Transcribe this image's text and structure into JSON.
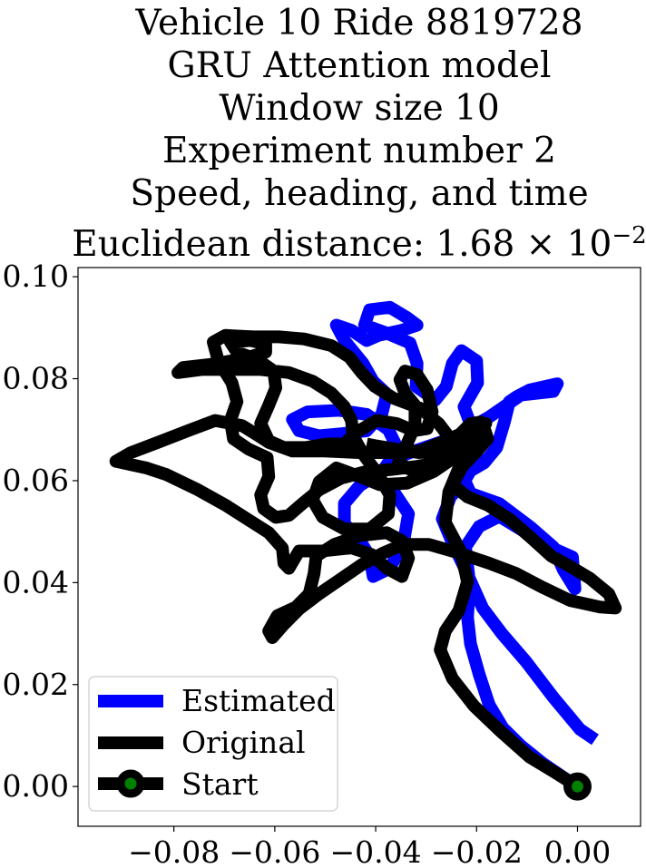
{
  "chart_data": {
    "type": "line",
    "title_lines": [
      "Vehicle 10 Ride 8819728",
      "GRU Attention model",
      "Window size 10",
      "Experiment number 2",
      "Speed, heading, and time"
    ],
    "distance_label": "Euclidean distance: 1.68",
    "distance_exponent_base": "× 10",
    "distance_exponent": "−2",
    "xlabel": "",
    "ylabel": "",
    "xlim": [
      -0.099,
      0.0125
    ],
    "ylim": [
      -0.0078,
      0.1018
    ],
    "xticks": [
      -0.08,
      -0.06,
      -0.04,
      -0.02,
      0.0
    ],
    "xtick_labels": [
      "−0.08",
      "−0.06",
      "−0.04",
      "−0.02",
      "0.00"
    ],
    "yticks": [
      0.0,
      0.02,
      0.04,
      0.06,
      0.08,
      0.1
    ],
    "ytick_labels": [
      "0.00",
      "0.02",
      "0.04",
      "0.06",
      "0.08",
      "0.10"
    ],
    "legend_position": "lower-left",
    "series": [
      {
        "name": "Estimated",
        "color": "#0000ff",
        "points": [
          [
            0.0035,
            0.0092
          ],
          [
            0.0005,
            0.0112
          ],
          [
            -0.0048,
            0.0175
          ],
          [
            -0.0102,
            0.0245
          ],
          [
            -0.015,
            0.03
          ],
          [
            -0.0188,
            0.035
          ],
          [
            -0.0215,
            0.041
          ],
          [
            -0.0222,
            0.047
          ],
          [
            -0.0195,
            0.051
          ],
          [
            -0.0155,
            0.053
          ],
          [
            -0.0105,
            0.05
          ],
          [
            -0.0055,
            0.047
          ],
          [
            -0.001,
            0.045
          ],
          [
            -0.0005,
            0.0388
          ],
          [
            -0.0028,
            0.0425
          ],
          [
            -0.0048,
            0.047
          ],
          [
            -0.0092,
            0.0508
          ],
          [
            -0.0155,
            0.0555
          ],
          [
            -0.0212,
            0.0575
          ],
          [
            -0.0228,
            0.061
          ],
          [
            -0.0185,
            0.0635
          ],
          [
            -0.016,
            0.0665
          ],
          [
            -0.0145,
            0.0715
          ],
          [
            -0.0135,
            0.0755
          ],
          [
            -0.012,
            0.0765
          ],
          [
            -0.0095,
            0.0778
          ],
          [
            -0.004,
            0.079
          ],
          [
            -0.0048,
            0.0775
          ],
          [
            -0.0112,
            0.0768
          ],
          [
            -0.0175,
            0.0725
          ],
          [
            -0.021,
            0.0705
          ],
          [
            -0.0225,
            0.0745
          ],
          [
            -0.0198,
            0.0792
          ],
          [
            -0.02,
            0.0835
          ],
          [
            -0.023,
            0.0855
          ],
          [
            -0.0248,
            0.083
          ],
          [
            -0.026,
            0.0785
          ],
          [
            -0.0282,
            0.0758
          ],
          [
            -0.032,
            0.0785
          ],
          [
            -0.0318,
            0.083
          ],
          [
            -0.0332,
            0.087
          ],
          [
            -0.038,
            0.089
          ],
          [
            -0.0422,
            0.0905
          ],
          [
            -0.0412,
            0.0935
          ],
          [
            -0.0372,
            0.094
          ],
          [
            -0.0338,
            0.092
          ],
          [
            -0.0318,
            0.0905
          ],
          [
            -0.0348,
            0.0895
          ],
          [
            -0.0395,
            0.0885
          ],
          [
            -0.0418,
            0.0875
          ],
          [
            -0.0448,
            0.0895
          ],
          [
            -0.0478,
            0.0905
          ],
          [
            -0.0462,
            0.0875
          ],
          [
            -0.0425,
            0.083
          ],
          [
            -0.0405,
            0.0795
          ],
          [
            -0.0378,
            0.077
          ],
          [
            -0.0388,
            0.073
          ],
          [
            -0.0418,
            0.0698
          ],
          [
            -0.0468,
            0.0692
          ],
          [
            -0.0512,
            0.0688
          ],
          [
            -0.0552,
            0.0698
          ],
          [
            -0.0565,
            0.072
          ],
          [
            -0.0535,
            0.0735
          ],
          [
            -0.0472,
            0.0738
          ],
          [
            -0.0418,
            0.073
          ],
          [
            -0.0375,
            0.07
          ],
          [
            -0.0355,
            0.066
          ],
          [
            -0.0385,
            0.062
          ],
          [
            -0.0432,
            0.059
          ],
          [
            -0.0462,
            0.0555
          ],
          [
            -0.0462,
            0.0515
          ],
          [
            -0.0435,
            0.0488
          ],
          [
            -0.0412,
            0.0452
          ],
          [
            -0.0405,
            0.0412
          ],
          [
            -0.0372,
            0.0428
          ],
          [
            -0.0345,
            0.0478
          ],
          [
            -0.0335,
            0.0535
          ],
          [
            -0.0362,
            0.0575
          ],
          [
            -0.0395,
            0.0605
          ],
          [
            -0.0372,
            0.064
          ],
          [
            -0.0318,
            0.066
          ],
          [
            -0.0252,
            0.0682
          ],
          [
            -0.0215,
            0.0678
          ],
          [
            -0.0198,
            0.0645
          ],
          [
            -0.0222,
            0.0602
          ],
          [
            -0.0252,
            0.0568
          ],
          [
            -0.0268,
            0.0525
          ],
          [
            -0.0248,
            0.0478
          ],
          [
            -0.0222,
            0.0425
          ],
          [
            -0.0215,
            0.038
          ],
          [
            -0.0218,
            0.0332
          ],
          [
            -0.0212,
            0.028
          ],
          [
            -0.0195,
            0.022
          ],
          [
            -0.0175,
            0.016
          ],
          [
            -0.0148,
            0.0115
          ],
          [
            -0.0112,
            0.008
          ],
          [
            -0.0068,
            0.0045
          ],
          [
            -0.0028,
            0.0018
          ],
          [
            0.0,
            0.0
          ]
        ]
      },
      {
        "name": "Original",
        "color": "#000000",
        "points": [
          [
            0.0,
            0.0
          ],
          [
            -0.0045,
            0.0028
          ],
          [
            -0.0095,
            0.0058
          ],
          [
            -0.0152,
            0.0108
          ],
          [
            -0.0205,
            0.0158
          ],
          [
            -0.0248,
            0.0212
          ],
          [
            -0.0272,
            0.0268
          ],
          [
            -0.0262,
            0.0305
          ],
          [
            -0.0235,
            0.0345
          ],
          [
            -0.0218,
            0.0402
          ],
          [
            -0.0232,
            0.0462
          ],
          [
            -0.0262,
            0.0518
          ],
          [
            -0.0255,
            0.0578
          ],
          [
            -0.0232,
            0.0632
          ],
          [
            -0.0212,
            0.0672
          ],
          [
            -0.0188,
            0.0712
          ],
          [
            -0.0178,
            0.0682
          ],
          [
            -0.0202,
            0.0655
          ],
          [
            -0.0228,
            0.0628
          ],
          [
            -0.0248,
            0.0592
          ],
          [
            -0.0218,
            0.0568
          ],
          [
            -0.0178,
            0.0552
          ],
          [
            -0.0135,
            0.0525
          ],
          [
            -0.0092,
            0.0488
          ],
          [
            -0.0052,
            0.0452
          ],
          [
            -0.0015,
            0.0432
          ],
          [
            0.0025,
            0.0408
          ],
          [
            0.0062,
            0.0378
          ],
          [
            0.0075,
            0.035
          ],
          [
            0.0045,
            0.0352
          ],
          [
            -0.0015,
            0.0365
          ],
          [
            -0.0072,
            0.0392
          ],
          [
            -0.0122,
            0.0418
          ],
          [
            -0.0175,
            0.0438
          ],
          [
            -0.0235,
            0.0458
          ],
          [
            -0.0295,
            0.0475
          ],
          [
            -0.0345,
            0.0475
          ],
          [
            -0.0385,
            0.0458
          ],
          [
            -0.0428,
            0.0435
          ],
          [
            -0.0472,
            0.0405
          ],
          [
            -0.0512,
            0.0378
          ],
          [
            -0.0552,
            0.0348
          ],
          [
            -0.0582,
            0.0318
          ],
          [
            -0.0605,
            0.0292
          ],
          [
            -0.0612,
            0.0305
          ],
          [
            -0.0595,
            0.0335
          ],
          [
            -0.0558,
            0.0352
          ],
          [
            -0.0532,
            0.0378
          ],
          [
            -0.0522,
            0.0418
          ],
          [
            -0.0518,
            0.0452
          ],
          [
            -0.0482,
            0.0475
          ],
          [
            -0.0432,
            0.0492
          ],
          [
            -0.0378,
            0.0498
          ],
          [
            -0.0348,
            0.0482
          ],
          [
            -0.0335,
            0.0448
          ],
          [
            -0.0348,
            0.0412
          ],
          [
            -0.0378,
            0.0428
          ],
          [
            -0.0408,
            0.0455
          ],
          [
            -0.0448,
            0.0468
          ],
          [
            -0.0508,
            0.0462
          ],
          [
            -0.0552,
            0.0462
          ],
          [
            -0.0572,
            0.0428
          ],
          [
            -0.0582,
            0.0438
          ],
          [
            -0.0585,
            0.0468
          ],
          [
            -0.0612,
            0.0498
          ],
          [
            -0.0655,
            0.0525
          ],
          [
            -0.0698,
            0.0552
          ],
          [
            -0.0752,
            0.0582
          ],
          [
            -0.0815,
            0.0612
          ],
          [
            -0.0855,
            0.0625
          ],
          [
            -0.0915,
            0.0638
          ],
          [
            -0.0885,
            0.0655
          ],
          [
            -0.0832,
            0.0675
          ],
          [
            -0.0772,
            0.0698
          ],
          [
            -0.0718,
            0.0718
          ],
          [
            -0.0665,
            0.0708
          ],
          [
            -0.0632,
            0.0688
          ],
          [
            -0.0612,
            0.0675
          ],
          [
            -0.0565,
            0.0658
          ],
          [
            -0.0502,
            0.0658
          ],
          [
            -0.0432,
            0.0655
          ],
          [
            -0.0372,
            0.0655
          ],
          [
            -0.0312,
            0.0658
          ],
          [
            -0.0262,
            0.0678
          ],
          [
            -0.0218,
            0.0698
          ],
          [
            -0.0182,
            0.0712
          ],
          [
            -0.0212,
            0.0682
          ],
          [
            -0.0245,
            0.0645
          ],
          [
            -0.0285,
            0.0618
          ],
          [
            -0.0338,
            0.0595
          ],
          [
            -0.0392,
            0.0592
          ],
          [
            -0.0432,
            0.0608
          ],
          [
            -0.0478,
            0.0625
          ],
          [
            -0.0512,
            0.0598
          ],
          [
            -0.0525,
            0.0562
          ],
          [
            -0.0505,
            0.0528
          ],
          [
            -0.0462,
            0.0505
          ],
          [
            -0.0412,
            0.0505
          ],
          [
            -0.0375,
            0.0535
          ],
          [
            -0.0372,
            0.0572
          ],
          [
            -0.0395,
            0.0612
          ],
          [
            -0.0425,
            0.0652
          ],
          [
            -0.0445,
            0.0688
          ],
          [
            -0.0448,
            0.0718
          ],
          [
            -0.0462,
            0.0745
          ],
          [
            -0.0488,
            0.0772
          ],
          [
            -0.0525,
            0.0795
          ],
          [
            -0.0572,
            0.0812
          ],
          [
            -0.0628,
            0.0818
          ],
          [
            -0.0692,
            0.0818
          ],
          [
            -0.0745,
            0.0818
          ],
          [
            -0.0792,
            0.0812
          ],
          [
            -0.0782,
            0.0822
          ],
          [
            -0.0728,
            0.0828
          ],
          [
            -0.0668,
            0.0838
          ],
          [
            -0.0618,
            0.0852
          ],
          [
            -0.0618,
            0.0868
          ],
          [
            -0.0648,
            0.0875
          ],
          [
            -0.0688,
            0.0872
          ],
          [
            -0.0675,
            0.0852
          ],
          [
            -0.0635,
            0.0838
          ],
          [
            -0.0602,
            0.0815
          ],
          [
            -0.0598,
            0.0782
          ],
          [
            -0.0612,
            0.0748
          ],
          [
            -0.0628,
            0.0712
          ],
          [
            -0.0612,
            0.0678
          ],
          [
            -0.0582,
            0.0665
          ],
          [
            -0.0538,
            0.0665
          ],
          [
            -0.0498,
            0.0672
          ],
          [
            -0.0462,
            0.0672
          ],
          [
            -0.0438,
            0.0695
          ],
          [
            -0.0398,
            0.0718
          ],
          [
            -0.0358,
            0.0712
          ],
          [
            -0.0325,
            0.0698
          ],
          [
            -0.0298,
            0.0702
          ],
          [
            -0.0288,
            0.0735
          ],
          [
            -0.0298,
            0.0778
          ],
          [
            -0.0318,
            0.0808
          ],
          [
            -0.0342,
            0.0815
          ],
          [
            -0.0352,
            0.0798
          ],
          [
            -0.0342,
            0.0772
          ],
          [
            -0.0322,
            0.0748
          ],
          [
            -0.0322,
            0.0708
          ],
          [
            -0.0338,
            0.0672
          ],
          [
            -0.0355,
            0.0635
          ],
          [
            -0.0325,
            0.0618
          ],
          [
            -0.0288,
            0.0628
          ],
          [
            -0.0262,
            0.0652
          ],
          [
            -0.0252,
            0.0682
          ],
          [
            -0.0275,
            0.0712
          ],
          [
            -0.0312,
            0.0742
          ],
          [
            -0.0365,
            0.0762
          ],
          [
            -0.0402,
            0.0785
          ],
          [
            -0.0428,
            0.0812
          ],
          [
            -0.0452,
            0.0842
          ],
          [
            -0.0488,
            0.0865
          ],
          [
            -0.0542,
            0.0878
          ],
          [
            -0.0592,
            0.0882
          ],
          [
            -0.0642,
            0.0882
          ],
          [
            -0.0698,
            0.0885
          ],
          [
            -0.0722,
            0.0872
          ],
          [
            -0.0712,
            0.0835
          ],
          [
            -0.0685,
            0.0792
          ],
          [
            -0.0675,
            0.0755
          ],
          [
            -0.0688,
            0.0718
          ],
          [
            -0.0682,
            0.0682
          ],
          [
            -0.0652,
            0.0662
          ],
          [
            -0.0615,
            0.0645
          ],
          [
            -0.0612,
            0.0608
          ],
          [
            -0.0628,
            0.0572
          ],
          [
            -0.0622,
            0.0545
          ],
          [
            -0.0598,
            0.0528
          ],
          [
            -0.0572,
            0.0532
          ],
          [
            -0.0545,
            0.0555
          ],
          [
            -0.0512,
            0.0582
          ],
          [
            -0.0468,
            0.0605
          ],
          [
            -0.0418,
            0.0618
          ],
          [
            -0.0368,
            0.0622
          ],
          [
            -0.0318,
            0.0628
          ],
          [
            -0.0262,
            0.0638
          ],
          [
            -0.0218,
            0.0662
          ],
          [
            -0.0198,
            0.0692
          ],
          [
            -0.0192,
            0.0715
          ],
          [
            -0.0212,
            0.0712
          ],
          [
            -0.0242,
            0.0682
          ],
          [
            -0.0272,
            0.0658
          ],
          [
            -0.0315,
            0.0655
          ],
          [
            -0.0362,
            0.0662
          ],
          [
            -0.0398,
            0.0668
          ],
          [
            -0.0418,
            0.0672
          ]
        ]
      }
    ],
    "start_point": {
      "name": "Start",
      "x": 0.0,
      "y": 0.0,
      "ring_color": "#000000",
      "center_color": "#008000"
    }
  }
}
